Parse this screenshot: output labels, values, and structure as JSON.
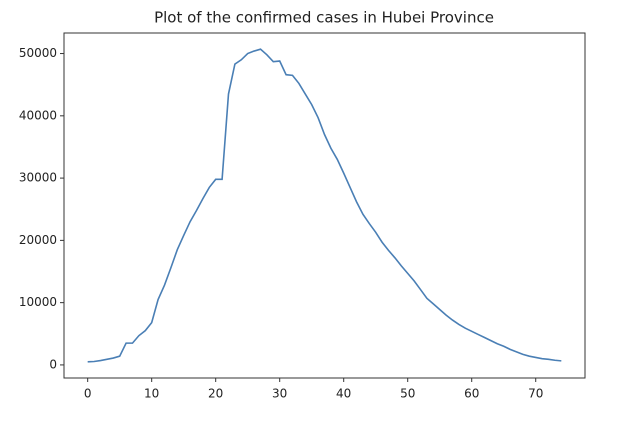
{
  "chart_data": {
    "type": "line",
    "title": "Plot of the confirmed cases in Hubei Province",
    "x": [
      0,
      1,
      2,
      3,
      4,
      5,
      6,
      7,
      8,
      9,
      10,
      11,
      12,
      13,
      14,
      15,
      16,
      17,
      18,
      19,
      20,
      21,
      22,
      23,
      24,
      25,
      26,
      27,
      28,
      29,
      30,
      31,
      32,
      33,
      34,
      35,
      36,
      37,
      38,
      39,
      40,
      41,
      42,
      43,
      44,
      45,
      46,
      47,
      48,
      49,
      50,
      51,
      52,
      53,
      54,
      55,
      56,
      57,
      58,
      59,
      60,
      61,
      62,
      63,
      64,
      65,
      66,
      67,
      68,
      69,
      70,
      71,
      72,
      73,
      74
    ],
    "series": [
      {
        "color": "#4a7fb5",
        "values": [
          500,
          550,
          700,
          900,
          1100,
          1400,
          3500,
          3500,
          4700,
          5500,
          6800,
          10500,
          12800,
          15600,
          18500,
          20800,
          23000,
          24800,
          26700,
          28500,
          29800,
          29800,
          43500,
          48300,
          49000,
          50000,
          50400,
          50700,
          49800,
          48700,
          48800,
          46600,
          46500,
          45200,
          43500,
          41800,
          39700,
          37000,
          34800,
          33000,
          30800,
          28500,
          26200,
          24200,
          22700,
          21300,
          19700,
          18400,
          17200,
          15900,
          14700,
          13500,
          12100,
          10700,
          9800,
          8900,
          8000,
          7200,
          6500,
          5900,
          5400,
          4900,
          4400,
          3900,
          3400,
          3000,
          2500,
          2100,
          1700,
          1400,
          1200,
          1000,
          900,
          750,
          650
        ]
      }
    ],
    "xlim": [
      -3.7,
      77.7
    ],
    "xticks": [
      0,
      10,
      20,
      30,
      40,
      50,
      60,
      70
    ],
    "ylim": [
      -2100,
      53300
    ],
    "yticks": [
      0,
      10000,
      20000,
      30000,
      40000,
      50000
    ],
    "grid": false
  }
}
